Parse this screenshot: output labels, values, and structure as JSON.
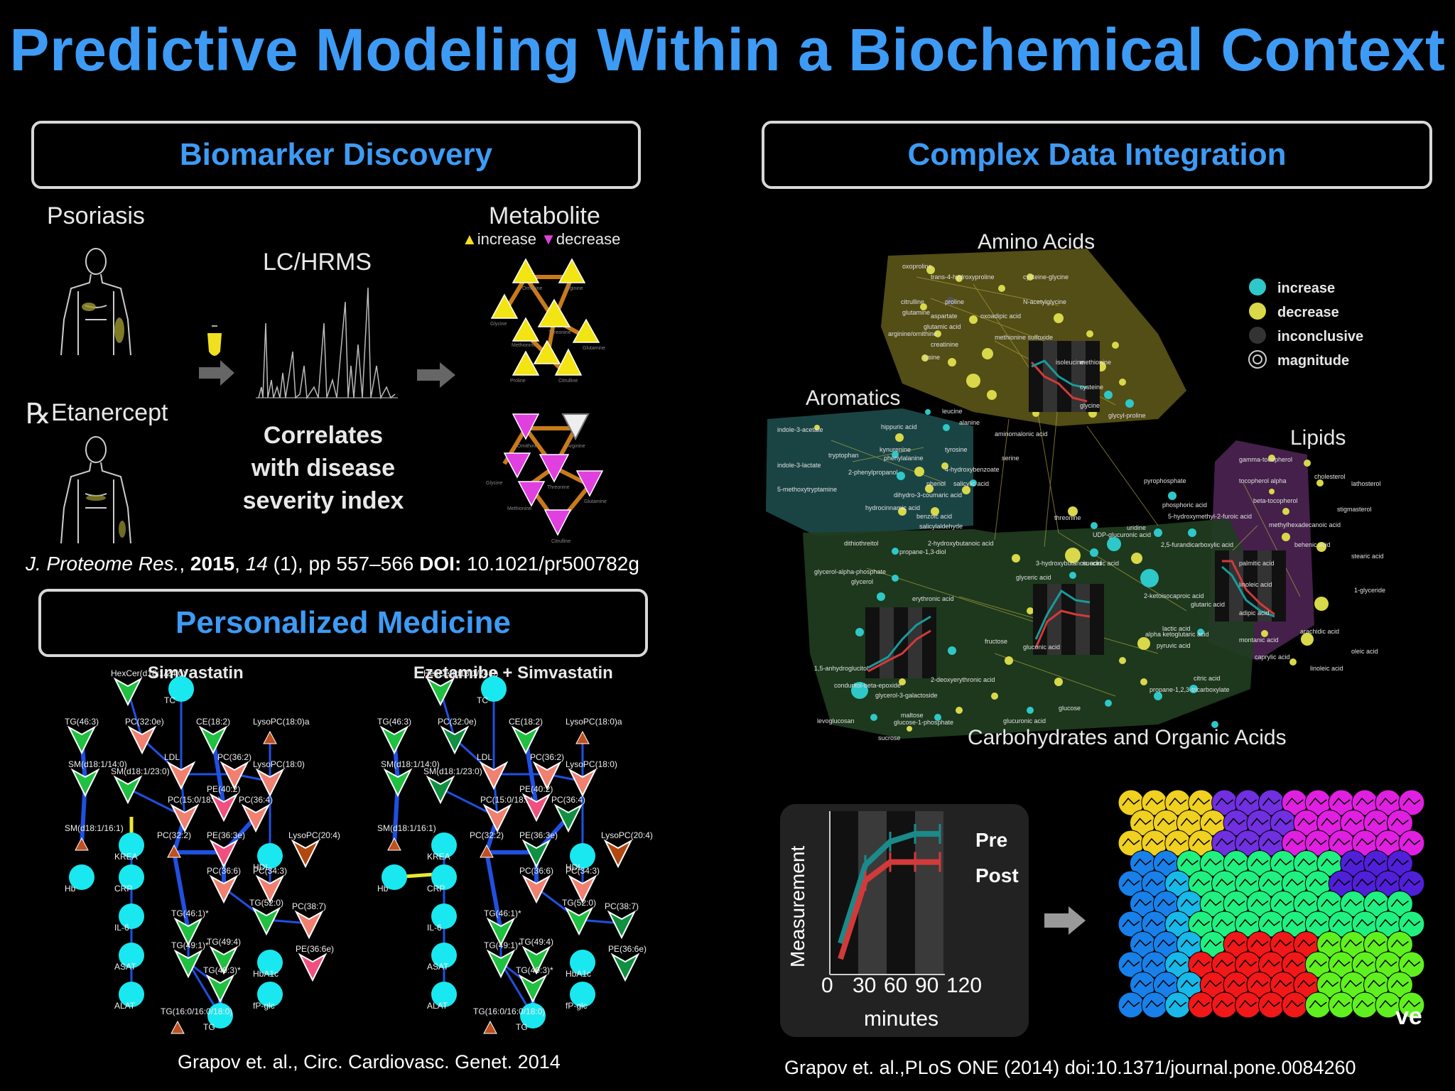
{
  "title": "Predictive Modeling Within a Biochemical Context",
  "panels": {
    "biomarker": "Biomarker Discovery",
    "integration": "Complex Data Integration",
    "personalized": "Personalized Medicine"
  },
  "biomarker": {
    "psoriasis": "Psoriasis",
    "rx_symbol": "℞",
    "etanercept": "Etanercept",
    "lchrms": "LC/HRMS",
    "correlates": [
      "Correlates",
      "with disease",
      "severity index"
    ],
    "metabolite": "Metabolite",
    "increase": "increase",
    "decrease": "decrease",
    "citation": {
      "journal": "J. Proteome Res.",
      "year": "2015",
      "volume": "14",
      "issue_pages": " (1), pp 557–566 ",
      "doi_label": "DOI:",
      "doi": " 10.1021/pr500782g"
    },
    "node_labels_top": [
      "Ornithine",
      "Arginine",
      "Glycine",
      "Threonine",
      "Glutamine",
      "Methionine",
      "Proline",
      "Citrulline"
    ],
    "node_labels_bottom": [
      "Ornithine",
      "Arginine",
      "Glycine",
      "Threonine",
      "Glutamine",
      "Methionine",
      "Citrulline"
    ]
  },
  "network": {
    "groups": {
      "amino": "Amino Acids",
      "aromatics": "Aromatics",
      "lipids": "Lipids",
      "carbs": "Carbohydrates and Organic Acids"
    },
    "legend": [
      "increase",
      "decrease",
      "inconclusive",
      "magnitude"
    ],
    "colors": {
      "increase": "#2ec8c8",
      "decrease": "#d8d84a",
      "inconclusive": "#333333",
      "amino_bg": "#5a5418",
      "aromatics_bg": "#1c4a4a",
      "lipids_bg": "#4a2350",
      "carbs_bg": "#203d20"
    },
    "amino_labels": [
      "oxoproline",
      "trans-4-hydroxyproline",
      "cysteine-glycine",
      "citrulline",
      "proline",
      "N-acetylglycine",
      "glutamine",
      "aspartate",
      "oxoadipic acid",
      "glutamic acid",
      "methionine sulfoxide",
      "arginine/ornithine",
      "creatinine",
      "lysine",
      "isoleucine",
      "methionine",
      "cysteine",
      "glycine",
      "leucine",
      "alanine",
      "aminomalonic acid",
      "serine",
      "glycyl-proline"
    ],
    "aromatic_labels": [
      "indole-3-acetate",
      "hippuric acid",
      "indole-3-lactate",
      "kynurenine",
      "tryptophan",
      "phenylalanine",
      "tyrosine",
      "2-phenylpropanol",
      "4-hydroxybenzoate",
      "5-methoxytryptamine",
      "phenol",
      "salicylic acid",
      "dihydro-3-coumaric acid",
      "hydrocinnamic acid",
      "benzoic acid",
      "salicylaldehyde"
    ],
    "lipid_labels": [
      "gamma-tocopherol",
      "tocopherol alpha",
      "cholesterol",
      "lathosterol",
      "beta-tocopherol",
      "stigmasterol",
      "methylhexadecanoic acid",
      "behenic acid",
      "palmitic acid",
      "stearic acid",
      "linoleic acid",
      "adipic acid",
      "1-glyceride",
      "montanic acid",
      "arachidic acid",
      "caprylic acid",
      "oleic acid",
      "linoleic acid"
    ],
    "carb_labels": [
      "threonine",
      "pyrophosphate",
      "phosphoric acid",
      "5-hydroxymethyl-2-furoic acid",
      "uridine",
      "UDP-glucuronic acid",
      "2,5-furandicarboxylic acid",
      "dithiothreitol",
      "propane-1,3-diol",
      "2-hydroxybutanoic acid",
      "glycerol-alpha-phosphate",
      "glycerol",
      "3-hydroxybutanoic acid",
      "succinic acid",
      "glyceric acid",
      "2-ketoisocaproic acid",
      "glutaric acid",
      "erythronic acid",
      "alpha ketoglutaric acid",
      "pyruvic acid",
      "lactic acid",
      "fructose",
      "gluconic acid",
      "citric acid",
      "propane-1,2,3-tricarboxylate",
      "1,5-anhydroglucitol",
      "2-deoxyerythronic acid",
      "conduritol-beta-epoxide",
      "glycerol-3-galactoside",
      "glucose",
      "levoglucosan",
      "maltose",
      "glucose-1-phosphate",
      "glucuronic acid",
      "sucrose"
    ]
  },
  "timecourse": {
    "ylabel": "Measurement",
    "xlabel": "minutes",
    "ticks": [
      "0",
      "30",
      "60",
      "90",
      "120"
    ],
    "series": [
      "Pre",
      "Post"
    ],
    "colors": {
      "pre": "#1a8a8a",
      "post": "#d23a3a"
    },
    "pre_values": [
      0.2,
      0.7,
      0.85,
      0.9,
      0.9
    ],
    "post_values": [
      0.1,
      0.6,
      0.72,
      0.72,
      0.72
    ]
  },
  "som": {
    "trailing_text": "ve",
    "cluster_colors": {
      "yellow": "#f0d020",
      "magenta": "#e020e0",
      "purple": "#7030e0",
      "green_light": "#20f080",
      "blue": "#1880e8",
      "cyan": "#18b8e8",
      "red": "#f01818",
      "lime": "#60f020",
      "violet": "#5020d8"
    }
  },
  "personalized": {
    "left_title": "Simvastatin",
    "right_title": "Ezetamibe + Simvastatin",
    "node_labels": [
      "HexCer(d18:1/24:0)",
      "TC",
      "CE(18:2)",
      "LysoPC(18:0)a",
      "TG(46:3)",
      "PC(32:0e)",
      "LDL",
      "PC(36:2)",
      "SM(d18:1/14:0)",
      "SM(d18:1/23:0)",
      "PC(15:0/18:2)",
      "PE(40:2)",
      "LysoPC(18:0)",
      "PC(36:4)",
      "SM(d18:1/16:1)",
      "KREA",
      "PC(32:2)",
      "PE(36:3e)",
      "HDL",
      "LysoPC(20:4)",
      "Hb",
      "CRP",
      "PC(34:3)",
      "PC(36:6)",
      "TG(52:0)",
      "IL-6",
      "TG(46:1)*",
      "TG(49:1)*",
      "TG(49:4)",
      "PC(38:7)",
      "ASAT",
      "TG(49:3)*",
      "HbA1c",
      "PE(36:6e)",
      "ALAT",
      "TG",
      "TG(16:0/16:0/18:0)",
      "fP-glc"
    ],
    "citation": "Grapov et. al., Circ. Cardiovasc. Genet. 2014"
  },
  "citation_right": "Grapov et. al.,PLoS ONE (2014) doi:10.1371/journal.pone.0084260"
}
